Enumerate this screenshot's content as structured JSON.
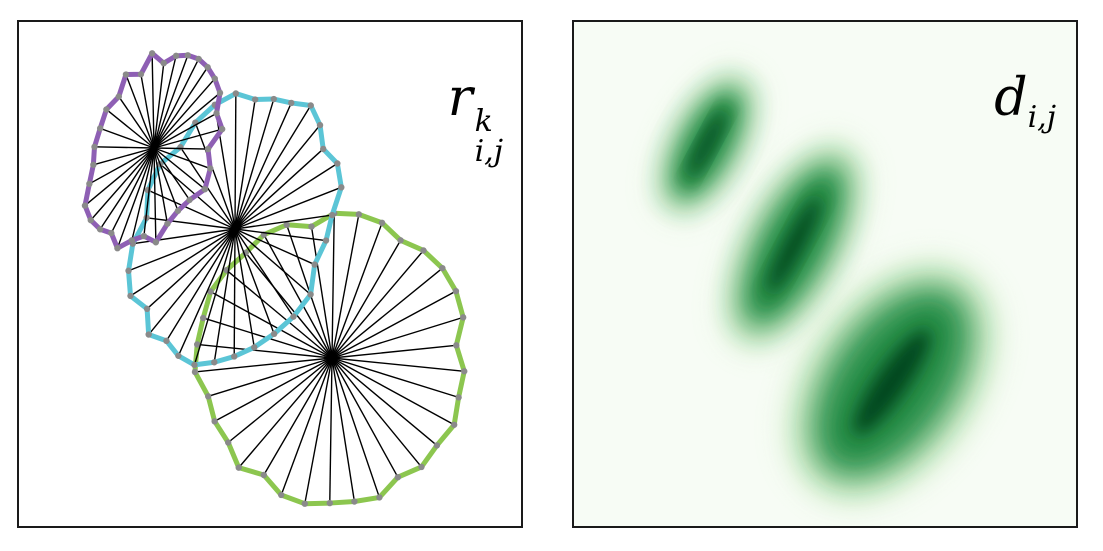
{
  "panels": {
    "left": {
      "label_base": "r",
      "label_sup": "k",
      "label_sub": "i,j"
    },
    "right": {
      "label_base": "d",
      "label_sub": "i,j"
    }
  },
  "colors": {
    "purple": "#8e5fb4",
    "cyan": "#5bc5d6",
    "green": "#8cc64f",
    "spoke": "#000000",
    "vertex": "#8a8a8a",
    "density_dark": "#00441b",
    "density_mid": "#238b45",
    "density_light": "#c7e9c0",
    "density_bg": "#f7fcf5"
  }
}
